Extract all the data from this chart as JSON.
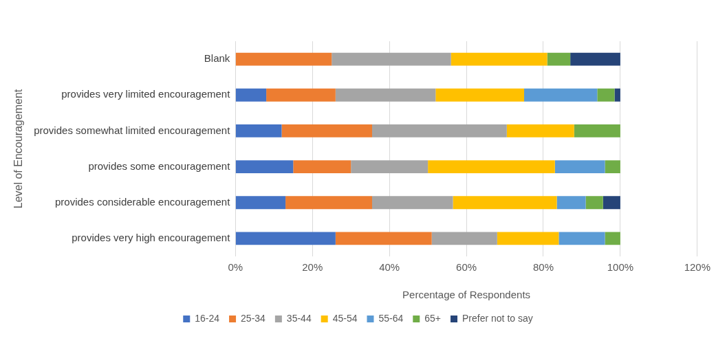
{
  "chart_data": {
    "type": "bar",
    "orientation": "horizontal",
    "stacked": true,
    "categories": [
      "Blank",
      "provides very limited encouragement",
      "provides somewhat limited encouragement",
      "provides some encouragement",
      "provides considerable encouragement",
      "provides very high encouragement"
    ],
    "series": [
      {
        "name": "16-24",
        "color": "#4472c4",
        "values": [
          0,
          8,
          12,
          15,
          13,
          26
        ]
      },
      {
        "name": "25-34",
        "color": "#ed7d31",
        "values": [
          25,
          18,
          23.5,
          15,
          22.5,
          25
        ]
      },
      {
        "name": "35-44",
        "color": "#a5a5a5",
        "values": [
          31,
          26,
          35,
          20,
          21,
          17
        ]
      },
      {
        "name": "45-54",
        "color": "#ffc000",
        "values": [
          25,
          23,
          17.5,
          33,
          27,
          16
        ]
      },
      {
        "name": "55-64",
        "color": "#5b9bd5",
        "values": [
          0,
          19,
          0,
          13,
          7.5,
          12
        ]
      },
      {
        "name": "65+",
        "color": "#70ad47",
        "values": [
          6,
          4.5,
          12,
          4,
          4.5,
          4
        ]
      },
      {
        "name": "Prefer not to say",
        "color": "#264478",
        "values": [
          13,
          1.5,
          0,
          0,
          4.5,
          0
        ]
      }
    ],
    "xlim": [
      0,
      120
    ],
    "xticks": [
      {
        "value": 0,
        "label": "0%"
      },
      {
        "value": 20,
        "label": "20%"
      },
      {
        "value": 40,
        "label": "40%"
      },
      {
        "value": 60,
        "label": "60%"
      },
      {
        "value": 80,
        "label": "80%"
      },
      {
        "value": 100,
        "label": "100%"
      },
      {
        "value": 120,
        "label": "120%"
      }
    ],
    "xlabel": "Percentage of Respondents",
    "ylabel": "Level of Encouragement",
    "grid": "x",
    "legend": "bottom"
  }
}
